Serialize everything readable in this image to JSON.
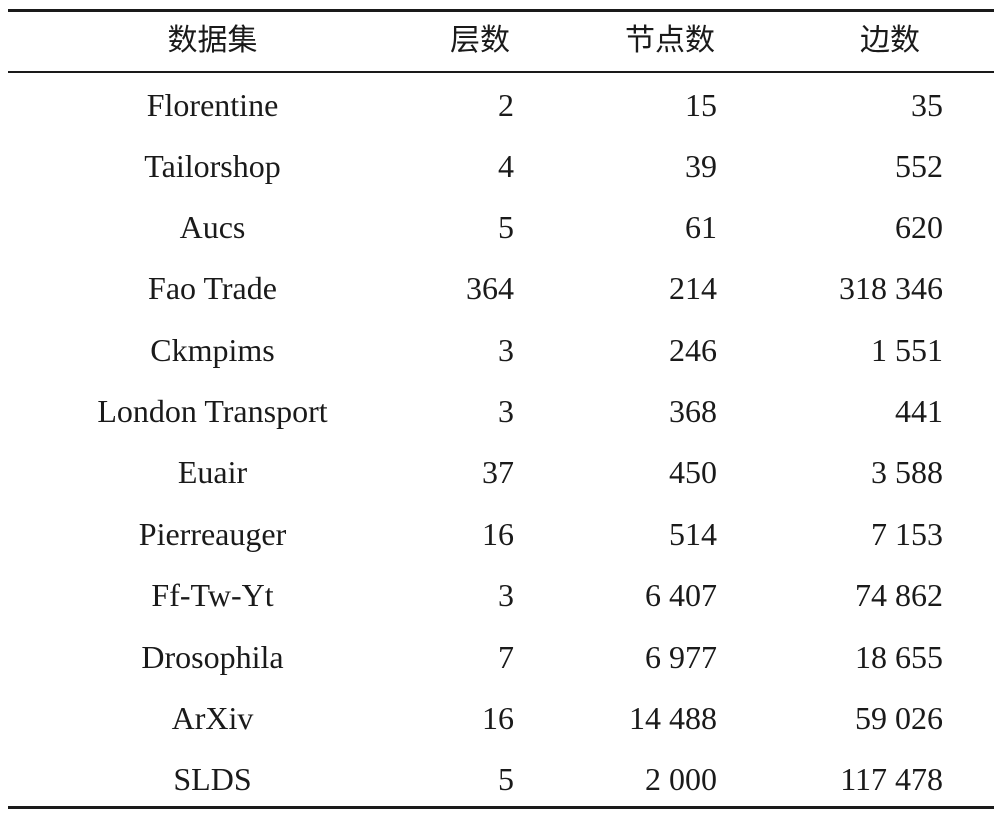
{
  "table": {
    "headers": {
      "name": "数据集",
      "layers": "层数",
      "nodes": "节点数",
      "edges": "边数"
    },
    "rows": [
      {
        "name": "Florentine",
        "layers": "2",
        "nodes": "15",
        "edges": "35"
      },
      {
        "name": "Tailorshop",
        "layers": "4",
        "nodes": "39",
        "edges": "552"
      },
      {
        "name": "Aucs",
        "layers": "5",
        "nodes": "61",
        "edges": "620"
      },
      {
        "name": "Fao Trade",
        "layers": "364",
        "nodes": "214",
        "edges": "318 346"
      },
      {
        "name": "Ckmpims",
        "layers": "3",
        "nodes": "246",
        "edges": "1 551"
      },
      {
        "name": "London Transport",
        "layers": "3",
        "nodes": "368",
        "edges": "441"
      },
      {
        "name": "Euair",
        "layers": "37",
        "nodes": "450",
        "edges": "3 588"
      },
      {
        "name": "Pierreauger",
        "layers": "16",
        "nodes": "514",
        "edges": "7 153"
      },
      {
        "name": "Ff-Tw-Yt",
        "layers": "3",
        "nodes": "6 407",
        "edges": "74 862"
      },
      {
        "name": "Drosophila",
        "layers": "7",
        "nodes": "6 977",
        "edges": "18 655"
      },
      {
        "name": "ArXiv",
        "layers": "16",
        "nodes": "14 488",
        "edges": "59 026"
      },
      {
        "name": "SLDS",
        "layers": "5",
        "nodes": "2 000",
        "edges": "117 478"
      }
    ]
  }
}
